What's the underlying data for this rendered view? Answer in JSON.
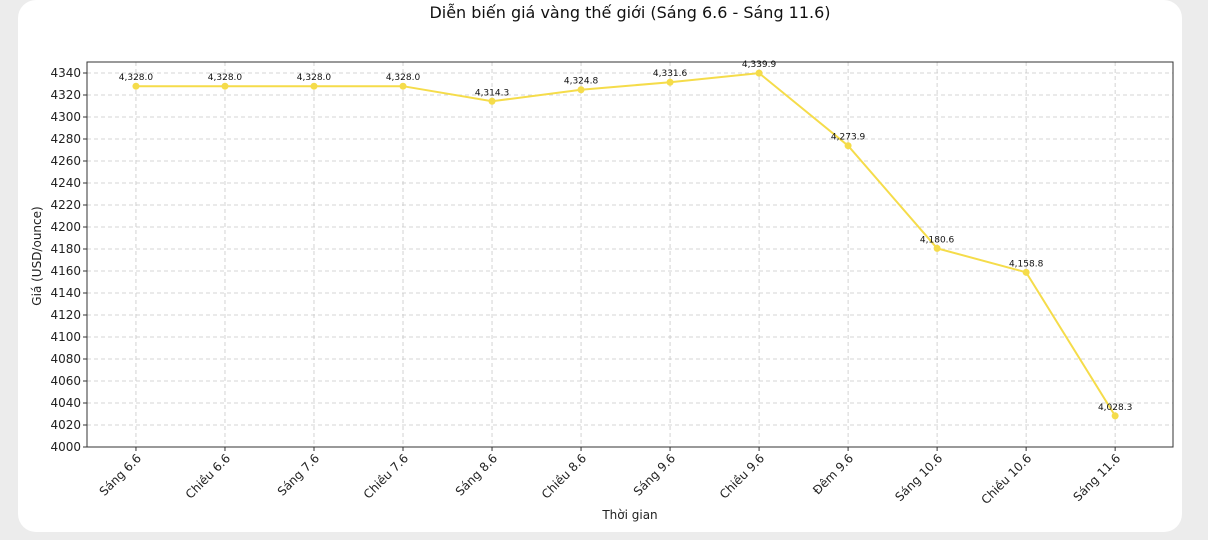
{
  "chart_data": {
    "type": "line",
    "title": "Diễn biến giá vàng thế giới (Sáng 6.6 - Sáng 11.6)",
    "xlabel": "Thời gian",
    "ylabel": "Giá (USD/ounce)",
    "categories": [
      "Sáng 6.6",
      "Chiều 6.6",
      "Sáng 7.6",
      "Chiều 7.6",
      "Sáng 8.6",
      "Chiều 8.6",
      "Sáng 9.6",
      "Chiều 9.6",
      "Đêm 9.6",
      "Sáng 10.6",
      "Chiều 10.6",
      "Sáng 11.6"
    ],
    "values": [
      4328.0,
      4328.0,
      4328.0,
      4328.0,
      4314.3,
      4324.8,
      4331.6,
      4339.9,
      4273.9,
      4180.6,
      4158.8,
      4028.3
    ],
    "data_labels": [
      "4,328.0",
      "4,328.0",
      "4,328.0",
      "4,328.0",
      "4,314.3",
      "4,324.8",
      "4,331.6",
      "4,339.9",
      "4,273.9",
      "4,180.6",
      "4,158.8",
      "4,028.3"
    ],
    "ylim": [
      4000,
      4350
    ],
    "yticks": [
      4000,
      4020,
      4040,
      4060,
      4080,
      4100,
      4120,
      4140,
      4160,
      4180,
      4200,
      4220,
      4240,
      4260,
      4280,
      4300,
      4320,
      4340
    ],
    "grid": true,
    "line_color": "#f5dc4a"
  }
}
